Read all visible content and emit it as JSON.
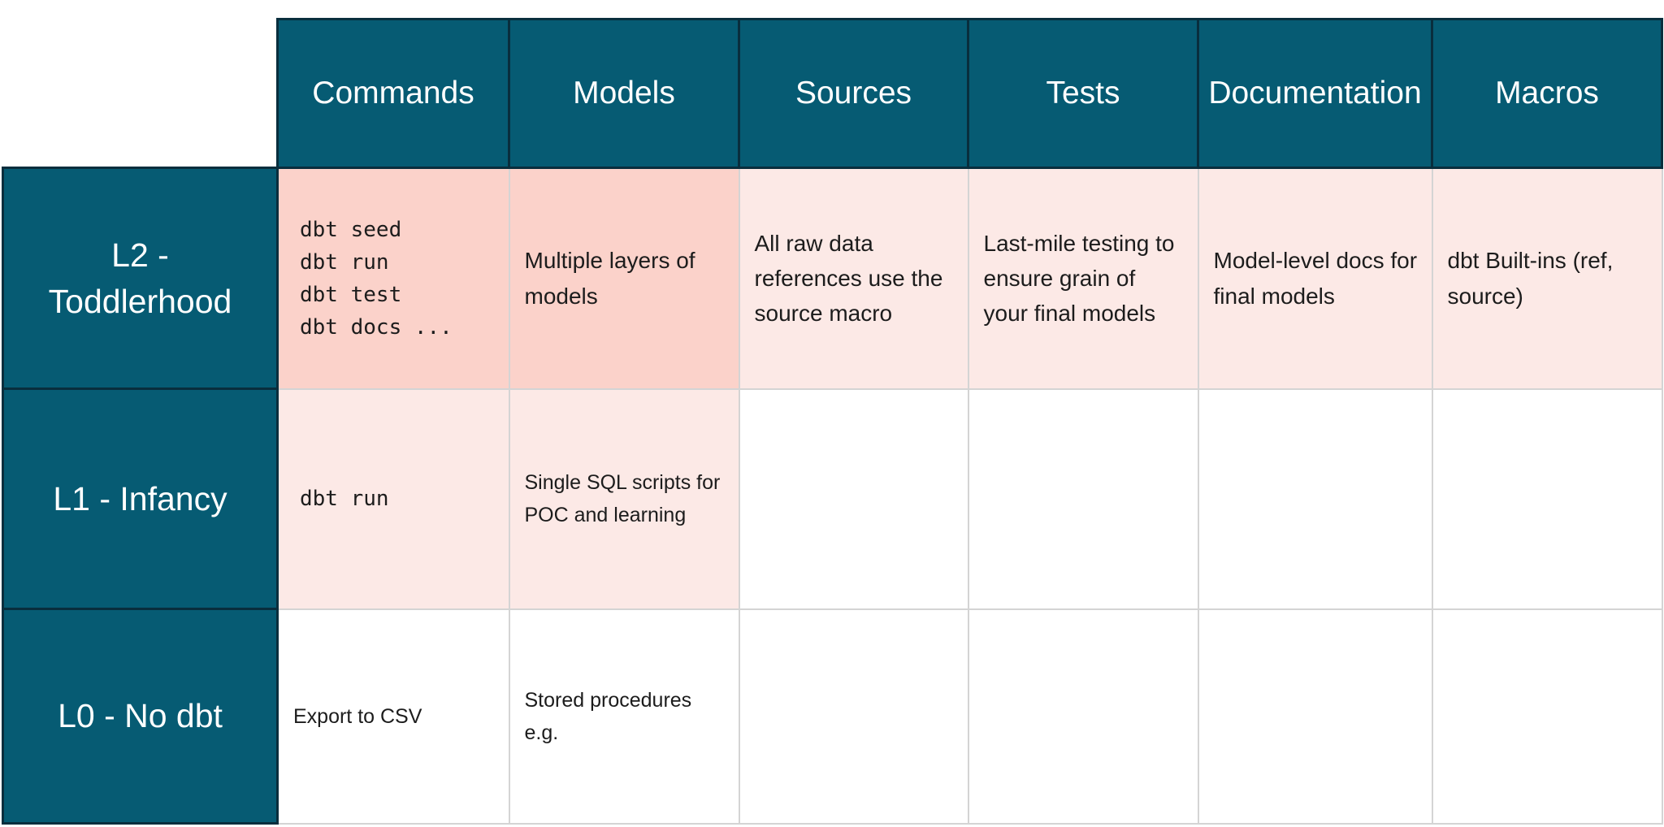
{
  "colors": {
    "header_teal": "#065B73",
    "teal_border": "#092E3D",
    "pink_strong": "#FBD2CA",
    "pink_light": "#FCE9E6",
    "grid_border": "#D4D4D4",
    "body_text": "#1C1C1C",
    "header_text": "#FFFFFF"
  },
  "table": {
    "columns": [
      "Commands",
      "Models",
      "Sources",
      "Tests",
      "Documentation",
      "Macros"
    ],
    "rows": [
      {
        "label": "L2 - Toddlerhood",
        "commands_code": [
          "dbt seed",
          "dbt run",
          "dbt test",
          "dbt docs ..."
        ],
        "models": "Multiple layers of models",
        "sources": "All raw data references use the source macro",
        "tests": "Last-mile testing to ensure grain of your final models",
        "documentation": "Model-level docs for final models",
        "macros": "dbt Built-ins (ref, source)"
      },
      {
        "label": "L1 - Infancy",
        "commands_code": [
          "dbt run"
        ],
        "models": "Single SQL scripts for POC and learning",
        "sources": "",
        "tests": "",
        "documentation": "",
        "macros": ""
      },
      {
        "label": "L0 - No dbt",
        "commands_text": "Export to CSV",
        "models": "Stored procedures e.g.",
        "sources": "",
        "tests": "",
        "documentation": "",
        "macros": ""
      }
    ]
  }
}
